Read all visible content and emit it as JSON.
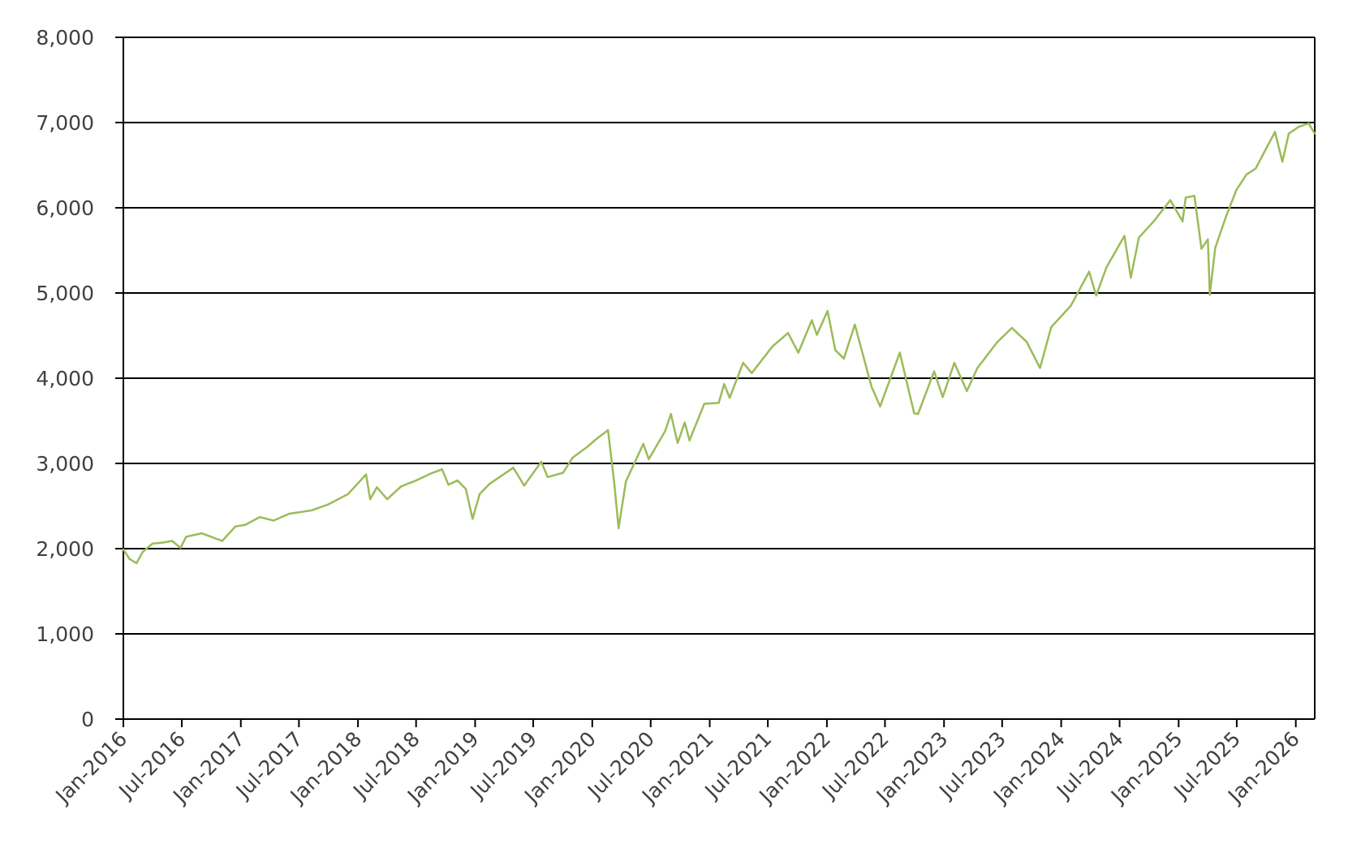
{
  "chart_data": {
    "type": "line",
    "title": "",
    "xlabel": "",
    "ylabel": "",
    "x_range": [
      "2016-01-01",
      "2026-03-01"
    ],
    "ylim": [
      0,
      8000
    ],
    "yticks": [
      0,
      1000,
      2000,
      3000,
      4000,
      5000,
      6000,
      7000,
      8000
    ],
    "ytick_labels": [
      "0",
      "1,000",
      "2,000",
      "3,000",
      "4,000",
      "5,000",
      "6,000",
      "7,000",
      "8,000"
    ],
    "xticks": [
      "2016-01-01",
      "2016-07-01",
      "2017-01-01",
      "2017-07-01",
      "2018-01-01",
      "2018-07-01",
      "2019-01-01",
      "2019-07-01",
      "2020-01-01",
      "2020-07-01",
      "2021-01-01",
      "2021-07-01",
      "2022-01-01",
      "2022-07-01",
      "2023-01-01",
      "2023-07-01",
      "2024-01-01",
      "2024-07-01",
      "2025-01-01",
      "2025-07-01",
      "2026-01-01"
    ],
    "xtick_labels": [
      "Jan-2016",
      "Jul-2016",
      "Jan-2017",
      "Jul-2017",
      "Jan-2018",
      "Jul-2018",
      "Jan-2019",
      "Jul-2019",
      "Jan-2020",
      "Jul-2020",
      "Jan-2021",
      "Jul-2021",
      "Jan-2022",
      "Jul-2022",
      "Jan-2023",
      "Jul-2023",
      "Jan-2024",
      "Jul-2024",
      "Jan-2025",
      "Jul-2025",
      "Jan-2026"
    ],
    "grid": "horizontal",
    "legend": "none",
    "colors": {
      "line": "#9bbb59",
      "grid": "#000000",
      "text": "#404040"
    },
    "series": [
      {
        "x": [
          "2016-01-01",
          "2016-01-20",
          "2016-02-11",
          "2016-03-01",
          "2016-04-01",
          "2016-05-01",
          "2016-06-01",
          "2016-06-27",
          "2016-07-15",
          "2016-09-01",
          "2016-11-04",
          "2016-12-15",
          "2017-01-15",
          "2017-03-01",
          "2017-04-13",
          "2017-06-01",
          "2017-08-10",
          "2017-10-01",
          "2017-12-01",
          "2018-01-26",
          "2018-02-08",
          "2018-03-01",
          "2018-04-02",
          "2018-05-15",
          "2018-07-01",
          "2018-08-15",
          "2018-09-20",
          "2018-10-10",
          "2018-11-07",
          "2018-12-03",
          "2018-12-24",
          "2019-01-15",
          "2019-02-15",
          "2019-04-30",
          "2019-06-03",
          "2019-07-26",
          "2019-08-15",
          "2019-10-02",
          "2019-11-01",
          "2019-12-15",
          "2020-01-15",
          "2020-02-19",
          "2020-03-10",
          "2020-03-23",
          "2020-04-15",
          "2020-06-08",
          "2020-06-25",
          "2020-08-15",
          "2020-09-02",
          "2020-09-23",
          "2020-10-15",
          "2020-10-30",
          "2020-12-15",
          "2021-01-29",
          "2021-02-15",
          "2021-03-04",
          "2021-04-15",
          "2021-05-12",
          "2021-07-15",
          "2021-09-02",
          "2021-10-04",
          "2021-11-15",
          "2021-12-01",
          "2022-01-03",
          "2022-01-27",
          "2022-02-23",
          "2022-03-29",
          "2022-05-20",
          "2022-06-16",
          "2022-08-16",
          "2022-09-30",
          "2022-10-12",
          "2022-12-01",
          "2022-12-28",
          "2023-02-02",
          "2023-03-13",
          "2023-04-15",
          "2023-06-15",
          "2023-07-31",
          "2023-09-15",
          "2023-10-27",
          "2023-12-01",
          "2024-01-31",
          "2024-03-28",
          "2024-04-19",
          "2024-05-21",
          "2024-07-16",
          "2024-08-05",
          "2024-08-30",
          "2024-10-15",
          "2024-12-06",
          "2025-01-13",
          "2025-01-23",
          "2025-02-19",
          "2025-03-13",
          "2025-04-02",
          "2025-04-08",
          "2025-04-25",
          "2025-05-30",
          "2025-06-30",
          "2025-07-31",
          "2025-08-29",
          "2025-09-30",
          "2025-10-28",
          "2025-11-20",
          "2025-12-10",
          "2026-01-10",
          "2026-02-10",
          "2026-03-01"
        ],
        "y": [
          1990,
          1880,
          1830,
          1960,
          2060,
          2070,
          2090,
          2010,
          2140,
          2180,
          2090,
          2260,
          2280,
          2370,
          2330,
          2410,
          2450,
          2520,
          2640,
          2870,
          2580,
          2720,
          2580,
          2730,
          2800,
          2880,
          2930,
          2750,
          2800,
          2700,
          2350,
          2640,
          2760,
          2950,
          2740,
          3020,
          2840,
          2890,
          3070,
          3190,
          3290,
          3390,
          2750,
          2240,
          2790,
          3230,
          3050,
          3380,
          3580,
          3240,
          3480,
          3270,
          3700,
          3710,
          3930,
          3770,
          4180,
          4060,
          4370,
          4530,
          4300,
          4680,
          4510,
          4790,
          4330,
          4230,
          4630,
          3900,
          3670,
          4300,
          3590,
          3580,
          4080,
          3780,
          4180,
          3850,
          4120,
          4420,
          4590,
          4430,
          4120,
          4600,
          4850,
          5250,
          4970,
          5300,
          5670,
          5180,
          5650,
          5840,
          6090,
          5840,
          6120,
          6140,
          5520,
          5630,
          4980,
          5530,
          5910,
          6210,
          6390,
          6460,
          6690,
          6890,
          6540,
          6870,
          6950,
          6990,
          6870
        ]
      }
    ]
  }
}
